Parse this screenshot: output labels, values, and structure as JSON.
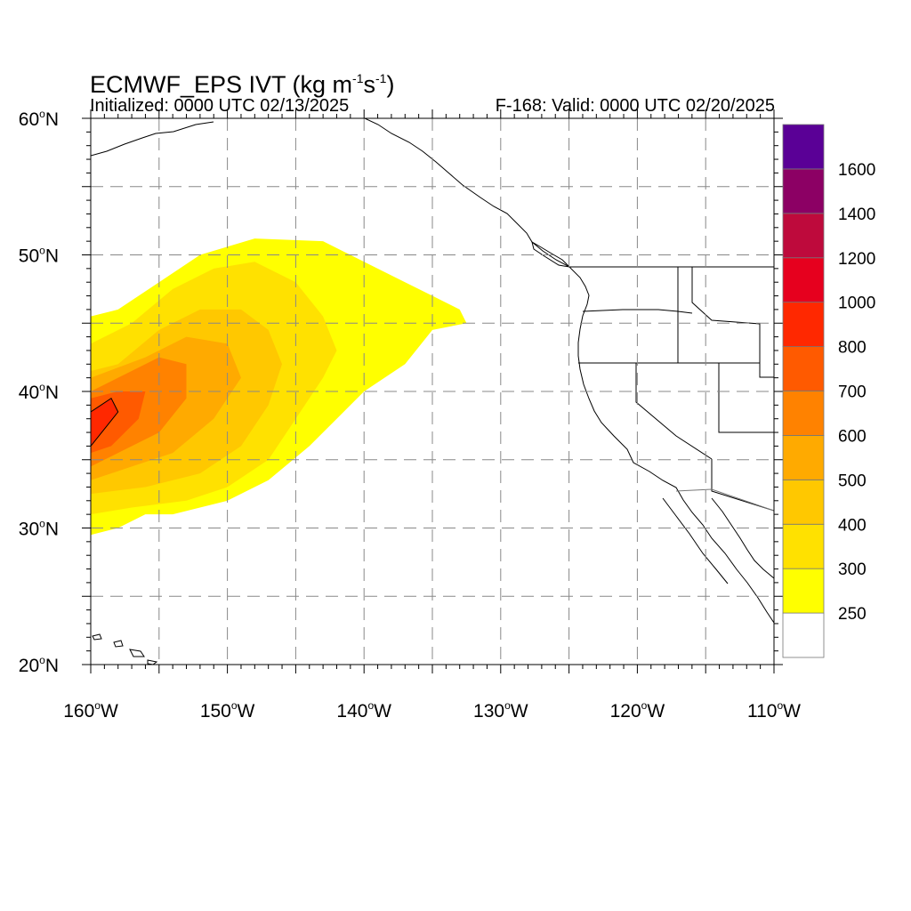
{
  "header": {
    "title_main": "ECMWF_EPS IVT (kg m",
    "title_exp1": "-1",
    "title_mid": "s",
    "title_exp2": "-1",
    "title_end": ")",
    "initialized": "Initialized: 0000 UTC 02/13/2025",
    "valid": "F-168: Valid: 0000 UTC 02/20/2025"
  },
  "axes": {
    "lon_range": [
      -160,
      -110
    ],
    "lat_range": [
      20,
      60
    ],
    "lat_labels": [
      {
        "value": 60,
        "num": "60",
        "deg": "o",
        "hem": "N"
      },
      {
        "value": 50,
        "num": "50",
        "deg": "o",
        "hem": "N"
      },
      {
        "value": 40,
        "num": "40",
        "deg": "o",
        "hem": "N"
      },
      {
        "value": 30,
        "num": "30",
        "deg": "o",
        "hem": "N"
      },
      {
        "value": 20,
        "num": "20",
        "deg": "o",
        "hem": "N"
      }
    ],
    "lon_labels": [
      {
        "value": -160,
        "num": "160",
        "deg": "o",
        "hem": "W"
      },
      {
        "value": -150,
        "num": "150",
        "deg": "o",
        "hem": "W"
      },
      {
        "value": -140,
        "num": "140",
        "deg": "o",
        "hem": "W"
      },
      {
        "value": -130,
        "num": "130",
        "deg": "o",
        "hem": "W"
      },
      {
        "value": -120,
        "num": "120",
        "deg": "o",
        "hem": "W"
      },
      {
        "value": -110,
        "num": "110",
        "deg": "o",
        "hem": "W"
      }
    ],
    "gridlines": "dashed every 5 degrees"
  },
  "colorbar": {
    "bins": [
      {
        "label": "",
        "color": "#ffffff"
      },
      {
        "label": "250",
        "color": "#ffff00"
      },
      {
        "label": "300",
        "color": "#ffe100"
      },
      {
        "label": "400",
        "color": "#ffc800"
      },
      {
        "label": "500",
        "color": "#ffaa00"
      },
      {
        "label": "600",
        "color": "#ff8200"
      },
      {
        "label": "700",
        "color": "#ff5a00"
      },
      {
        "label": "800",
        "color": "#ff2800"
      },
      {
        "label": "1000",
        "color": "#e6001e"
      },
      {
        "label": "1200",
        "color": "#be0a3c"
      },
      {
        "label": "1400",
        "color": "#8c0064"
      },
      {
        "label": "1600",
        "color": "#5a0096"
      }
    ]
  },
  "ivt_field": {
    "description_levels": "IVT plume shaded by colorbar levels",
    "levels": [
      {
        "min": 250,
        "color": "#ffff00",
        "polygon": [
          [
            -160,
            29.5
          ],
          [
            -158,
            30
          ],
          [
            -156,
            31
          ],
          [
            -154,
            31
          ],
          [
            -150,
            32
          ],
          [
            -147,
            33.5
          ],
          [
            -144,
            36
          ],
          [
            -142,
            38
          ],
          [
            -140,
            40
          ],
          [
            -137,
            42
          ],
          [
            -135,
            44.5
          ],
          [
            -132.5,
            45
          ],
          [
            -133,
            46
          ],
          [
            -135,
            47
          ],
          [
            -137,
            48
          ],
          [
            -140,
            49.5
          ],
          [
            -143,
            51
          ],
          [
            -148,
            51.2
          ],
          [
            -152,
            50
          ],
          [
            -155,
            48
          ],
          [
            -158,
            46
          ],
          [
            -160,
            45.5
          ]
        ]
      },
      {
        "min": 300,
        "color": "#ffe100",
        "polygon": [
          [
            -160,
            31
          ],
          [
            -157,
            31.5
          ],
          [
            -153,
            32
          ],
          [
            -150,
            33
          ],
          [
            -147,
            35
          ],
          [
            -145,
            38
          ],
          [
            -143,
            41
          ],
          [
            -142,
            43
          ],
          [
            -143,
            45.5
          ],
          [
            -145,
            48
          ],
          [
            -148,
            49.5
          ],
          [
            -151,
            49
          ],
          [
            -154,
            47.5
          ],
          [
            -157,
            45
          ],
          [
            -160,
            43.5
          ]
        ]
      },
      {
        "min": 400,
        "color": "#ffc800",
        "polygon": [
          [
            -160,
            32.5
          ],
          [
            -156,
            33
          ],
          [
            -152,
            34
          ],
          [
            -149,
            36
          ],
          [
            -147,
            39
          ],
          [
            -146,
            42
          ],
          [
            -147,
            44.5
          ],
          [
            -149,
            46
          ],
          [
            -152,
            46
          ],
          [
            -155,
            44.5
          ],
          [
            -158,
            42
          ],
          [
            -160,
            41.5
          ]
        ]
      },
      {
        "min": 500,
        "color": "#ffaa00",
        "polygon": [
          [
            -160,
            33.5
          ],
          [
            -157,
            34.5
          ],
          [
            -154,
            35.5
          ],
          [
            -151,
            38
          ],
          [
            -149,
            41
          ],
          [
            -150,
            43.5
          ],
          [
            -153,
            44
          ],
          [
            -156,
            42.5
          ],
          [
            -160,
            41
          ]
        ]
      },
      {
        "min": 600,
        "color": "#ff8200",
        "polygon": [
          [
            -160,
            34.5
          ],
          [
            -158,
            35.5
          ],
          [
            -155,
            37
          ],
          [
            -153,
            39.5
          ],
          [
            -153,
            42
          ],
          [
            -155,
            42.5
          ],
          [
            -158,
            41
          ],
          [
            -160,
            40
          ]
        ]
      },
      {
        "min": 700,
        "color": "#ff5a00",
        "polygon": [
          [
            -160,
            35.5
          ],
          [
            -158.5,
            36
          ],
          [
            -156.5,
            38
          ],
          [
            -156,
            40
          ],
          [
            -158,
            40
          ],
          [
            -160,
            39.5
          ]
        ]
      },
      {
        "min": 800,
        "color": "#ff2800",
        "polygon": [
          [
            -160,
            36
          ],
          [
            -159.2,
            37
          ],
          [
            -158,
            38.5
          ],
          [
            -158.5,
            39.5
          ],
          [
            -160,
            38.5
          ]
        ]
      }
    ]
  }
}
